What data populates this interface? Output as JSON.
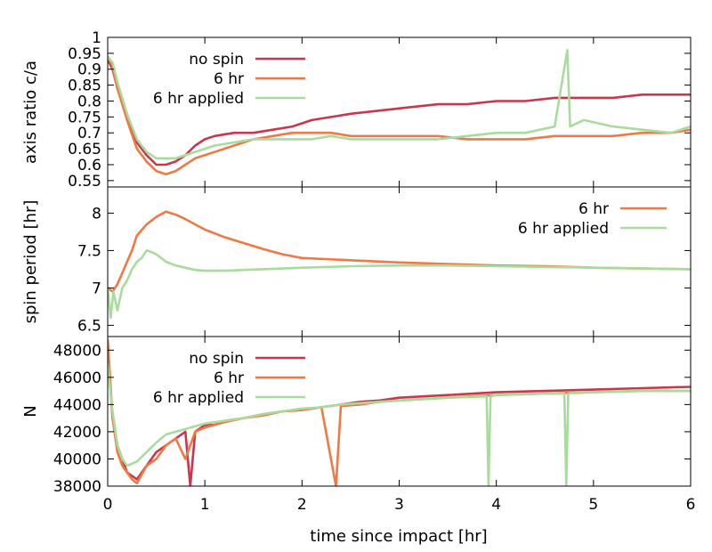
{
  "chart_data": [
    {
      "type": "line",
      "ylabel": "axis ratio c/a",
      "ylim": [
        0.53,
        1.0
      ],
      "yticks": [
        "0.55",
        "0.6",
        "0.65",
        "0.7",
        "0.75",
        "0.8",
        "0.85",
        "0.9",
        "0.95",
        "1"
      ],
      "legend": {
        "placement": "top-left"
      },
      "series": [
        {
          "name": "no spin",
          "color": "#c8374e",
          "x": [
            0,
            0.05,
            0.1,
            0.2,
            0.3,
            0.4,
            0.5,
            0.6,
            0.7,
            0.8,
            0.9,
            1.0,
            1.1,
            1.3,
            1.5,
            1.7,
            1.9,
            2.1,
            2.3,
            2.5,
            2.8,
            3.1,
            3.4,
            3.7,
            4.0,
            4.3,
            4.6,
            4.9,
            5.2,
            5.5,
            5.8,
            6.0
          ],
          "y": [
            0.93,
            0.9,
            0.84,
            0.75,
            0.67,
            0.63,
            0.6,
            0.6,
            0.61,
            0.63,
            0.66,
            0.68,
            0.69,
            0.7,
            0.7,
            0.71,
            0.72,
            0.74,
            0.75,
            0.76,
            0.77,
            0.78,
            0.79,
            0.79,
            0.8,
            0.8,
            0.81,
            0.81,
            0.81,
            0.82,
            0.82,
            0.82
          ]
        },
        {
          "name": "6 hr",
          "color": "#f07844",
          "x": [
            0,
            0.05,
            0.1,
            0.2,
            0.3,
            0.4,
            0.5,
            0.6,
            0.7,
            0.8,
            0.9,
            1.0,
            1.1,
            1.3,
            1.5,
            1.7,
            1.9,
            2.1,
            2.3,
            2.5,
            2.8,
            3.1,
            3.4,
            3.7,
            4.0,
            4.3,
            4.6,
            4.9,
            5.2,
            5.5,
            5.8,
            6.0
          ],
          "y": [
            0.94,
            0.91,
            0.84,
            0.74,
            0.65,
            0.61,
            0.58,
            0.57,
            0.58,
            0.6,
            0.62,
            0.63,
            0.64,
            0.66,
            0.68,
            0.69,
            0.7,
            0.7,
            0.7,
            0.69,
            0.69,
            0.69,
            0.69,
            0.68,
            0.68,
            0.68,
            0.69,
            0.69,
            0.69,
            0.7,
            0.7,
            0.71
          ]
        },
        {
          "name": "6 hr applied",
          "color": "#a8dc9c",
          "x": [
            0,
            0.05,
            0.1,
            0.2,
            0.3,
            0.4,
            0.5,
            0.6,
            0.7,
            0.8,
            0.9,
            1.0,
            1.1,
            1.3,
            1.5,
            1.7,
            1.9,
            2.1,
            2.3,
            2.5,
            2.8,
            3.1,
            3.4,
            3.7,
            4.0,
            4.3,
            4.6,
            4.73,
            4.76,
            4.9,
            5.2,
            5.5,
            5.8,
            6.0
          ],
          "y": [
            0.94,
            0.92,
            0.86,
            0.76,
            0.68,
            0.64,
            0.62,
            0.62,
            0.62,
            0.63,
            0.64,
            0.65,
            0.66,
            0.67,
            0.68,
            0.68,
            0.68,
            0.68,
            0.69,
            0.68,
            0.68,
            0.68,
            0.68,
            0.69,
            0.7,
            0.7,
            0.72,
            0.96,
            0.72,
            0.74,
            0.72,
            0.71,
            0.7,
            0.72
          ]
        }
      ]
    },
    {
      "type": "line",
      "ylabel": "spin period [hr]",
      "ylim": [
        6.35,
        8.35
      ],
      "yticks": [
        "6.5",
        "7",
        "7.5",
        "8"
      ],
      "legend": {
        "placement": "top-right"
      },
      "series": [
        {
          "name": "6 hr",
          "color": "#f07844",
          "x": [
            0,
            0.05,
            0.1,
            0.15,
            0.2,
            0.25,
            0.3,
            0.4,
            0.5,
            0.6,
            0.7,
            0.8,
            0.9,
            1.0,
            1.2,
            1.4,
            1.6,
            1.8,
            2.0,
            2.5,
            3.0,
            3.5,
            4.0,
            4.5,
            5.0,
            5.5,
            6.0
          ],
          "y": [
            7.0,
            6.95,
            7.05,
            7.2,
            7.35,
            7.5,
            7.7,
            7.85,
            7.95,
            8.02,
            7.98,
            7.92,
            7.85,
            7.78,
            7.68,
            7.6,
            7.52,
            7.45,
            7.4,
            7.37,
            7.34,
            7.32,
            7.3,
            7.29,
            7.27,
            7.26,
            7.25
          ]
        },
        {
          "name": "6 hr applied",
          "color": "#a8dc9c",
          "x": [
            0,
            0.03,
            0.06,
            0.1,
            0.15,
            0.2,
            0.25,
            0.3,
            0.35,
            0.4,
            0.45,
            0.5,
            0.6,
            0.7,
            0.8,
            0.9,
            1.0,
            1.2,
            1.4,
            1.6,
            1.8,
            2.0,
            2.5,
            3.0,
            3.5,
            4.0,
            4.5,
            5.0,
            5.5,
            6.0
          ],
          "y": [
            7.0,
            6.6,
            6.95,
            6.7,
            7.0,
            7.1,
            7.25,
            7.35,
            7.4,
            7.5,
            7.48,
            7.45,
            7.35,
            7.3,
            7.27,
            7.24,
            7.23,
            7.23,
            7.24,
            7.25,
            7.26,
            7.27,
            7.29,
            7.3,
            7.3,
            7.29,
            7.28,
            7.27,
            7.26,
            7.25
          ]
        }
      ]
    },
    {
      "type": "line",
      "xlabel": "time since impact [hr]",
      "ylabel": "N",
      "xlim": [
        0,
        6
      ],
      "xticks": [
        "0",
        "1",
        "2",
        "3",
        "4",
        "5",
        "6"
      ],
      "ylim": [
        38000,
        49000
      ],
      "yticks": [
        "38000",
        "40000",
        "42000",
        "44000",
        "46000",
        "48000"
      ],
      "legend": {
        "placement": "top-left"
      },
      "series": [
        {
          "name": "no spin",
          "color": "#c8374e",
          "x": [
            0,
            0.02,
            0.05,
            0.1,
            0.15,
            0.2,
            0.3,
            0.4,
            0.5,
            0.6,
            0.7,
            0.8,
            0.85,
            0.9,
            1.0,
            1.1,
            1.2,
            1.4,
            1.6,
            1.8,
            2.0,
            2.2,
            2.4,
            2.6,
            2.8,
            3.0,
            3.5,
            4.0,
            4.5,
            5.0,
            5.5,
            6.0
          ],
          "y": [
            48500,
            46000,
            43000,
            41000,
            40000,
            39000,
            38500,
            39500,
            40500,
            41000,
            41500,
            42000,
            38000,
            42000,
            42500,
            42500,
            42800,
            43000,
            43300,
            43500,
            43600,
            43800,
            44000,
            44200,
            44300,
            44500,
            44700,
            44900,
            45000,
            45100,
            45200,
            45300
          ]
        },
        {
          "name": "6 hr",
          "color": "#f07844",
          "x": [
            0,
            0.02,
            0.05,
            0.1,
            0.15,
            0.2,
            0.25,
            0.3,
            0.4,
            0.5,
            0.6,
            0.7,
            0.8,
            0.9,
            1.0,
            1.2,
            1.4,
            1.6,
            1.8,
            2.0,
            2.2,
            2.35,
            2.4,
            2.6,
            2.8,
            3.0,
            3.5,
            4.0,
            4.5,
            5.0,
            5.5,
            6.0
          ],
          "y": [
            48800,
            46500,
            43000,
            40500,
            39500,
            39000,
            38500,
            38200,
            39500,
            40000,
            41000,
            41500,
            40000,
            42000,
            42300,
            42700,
            43000,
            43200,
            43500,
            43600,
            43800,
            38000,
            43900,
            44000,
            44200,
            44300,
            44500,
            44700,
            44800,
            44900,
            45000,
            45000
          ]
        },
        {
          "name": "6 hr applied",
          "color": "#a8dc9c",
          "x": [
            0,
            0.02,
            0.05,
            0.1,
            0.15,
            0.2,
            0.3,
            0.4,
            0.5,
            0.6,
            0.7,
            0.8,
            0.9,
            1.0,
            1.2,
            1.4,
            1.6,
            1.8,
            2.0,
            2.2,
            2.4,
            2.6,
            2.8,
            3.0,
            3.5,
            3.9,
            3.92,
            3.94,
            4.0,
            4.5,
            4.7,
            4.72,
            4.74,
            4.8,
            5.0,
            5.5,
            6.0
          ],
          "y": [
            47000,
            45500,
            43500,
            41000,
            40000,
            39500,
            39800,
            40500,
            41200,
            41800,
            42000,
            42200,
            42400,
            42600,
            42800,
            43000,
            43300,
            43500,
            43700,
            43800,
            44000,
            44100,
            44200,
            44300,
            44500,
            44600,
            38000,
            44600,
            44700,
            44800,
            44800,
            38000,
            44800,
            44900,
            44900,
            45000,
            45000
          ]
        }
      ]
    }
  ]
}
